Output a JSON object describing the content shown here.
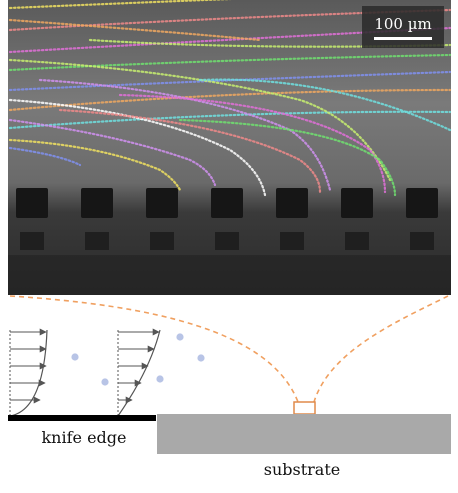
{
  "scale_bar": {
    "label": "100 µm"
  },
  "labels": {
    "knife_edge": "knife edge",
    "substrate": "substrate"
  },
  "colors": {
    "photo_bg": "#6f6f6f",
    "photo_dark": "#1e1e1e",
    "scale_box": "#2a2a2a",
    "zoom_lines": "#f0a060",
    "zoom_box": "#e08a4a",
    "knife": "#000000",
    "substrate": "#a9a9a9",
    "particles": "#b8c4e6",
    "profile_lines": "#555555",
    "track_palette": [
      "#f0e060",
      "#f08a8a",
      "#e070d8",
      "#70e070",
      "#8090f0",
      "#f0a860",
      "#70e0e0",
      "#c8f070",
      "#d090f0",
      "#ffffff"
    ]
  },
  "icons": {
    "velocity_arrows": "arrow-right-icon"
  }
}
